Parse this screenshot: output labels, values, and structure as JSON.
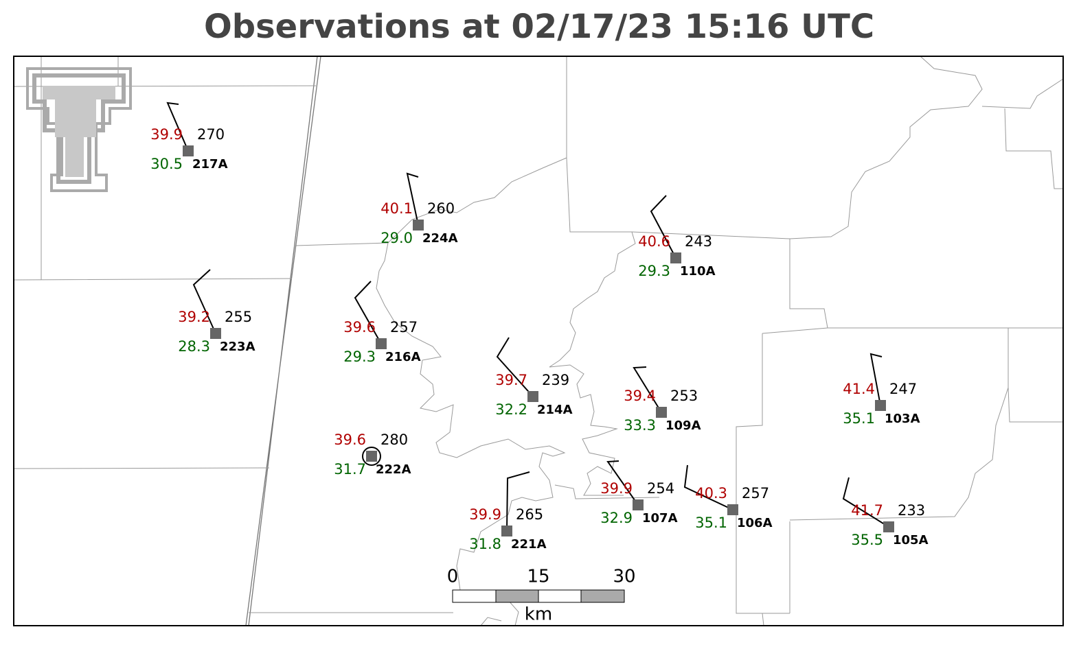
{
  "title": "Observations at 02/17/23 15:16 UTC",
  "stations": [
    {
      "id": "217A",
      "temperature": 39.9,
      "dewpoint": 30.5,
      "value": 270
    },
    {
      "id": "224A",
      "temperature": 40.1,
      "dewpoint": 29.0,
      "value": 260
    },
    {
      "id": "110A",
      "temperature": 40.6,
      "dewpoint": 29.3,
      "value": 243
    },
    {
      "id": "223A",
      "temperature": 39.2,
      "dewpoint": 28.3,
      "value": 255
    },
    {
      "id": "216A",
      "temperature": 39.6,
      "dewpoint": 29.3,
      "value": 257
    },
    {
      "id": "214A",
      "temperature": 39.7,
      "dewpoint": 32.2,
      "value": 239
    },
    {
      "id": "109A",
      "temperature": 39.4,
      "dewpoint": 33.3,
      "value": 253
    },
    {
      "id": "103A",
      "temperature": 41.4,
      "dewpoint": 35.1,
      "value": 247
    },
    {
      "id": "222A",
      "temperature": 39.6,
      "dewpoint": 31.7,
      "value": 280
    },
    {
      "id": "221A",
      "temperature": 39.9,
      "dewpoint": 31.8,
      "value": 265
    },
    {
      "id": "107A",
      "temperature": 39.9,
      "dewpoint": 32.9,
      "value": 254
    },
    {
      "id": "106A",
      "temperature": 40.3,
      "dewpoint": 35.1,
      "value": 257
    },
    {
      "id": "105A",
      "temperature": 41.7,
      "dewpoint": 35.5,
      "value": 233
    }
  ],
  "scale_bar": {
    "ticks": [
      0,
      15,
      30
    ],
    "unit": "km"
  }
}
